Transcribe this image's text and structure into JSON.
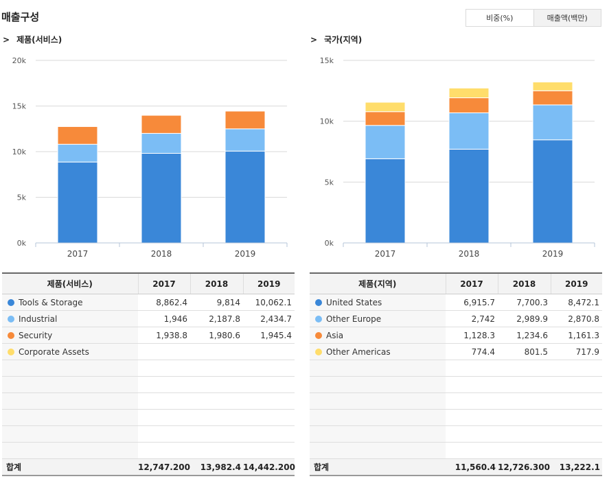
{
  "page_title": "매출구성",
  "toggle": {
    "ratio_label": "비중(%)",
    "amount_label": "매출액(백만)"
  },
  "colors": {
    "series1": "#3A87D8",
    "series2": "#7BBDF5",
    "series3": "#F78A3A",
    "series4": "#FFDD6B"
  },
  "left": {
    "section_title": "제품(서비스)",
    "arrow": ">",
    "table": {
      "header_label": "제품(서비스)",
      "years": [
        "2017",
        "2018",
        "2019"
      ],
      "rows": [
        {
          "label": "Tools & Storage",
          "values": [
            "8,862.4",
            "9,814",
            "10,062.1"
          ]
        },
        {
          "label": "Industrial",
          "values": [
            "1,946",
            "2,187.8",
            "2,434.7"
          ]
        },
        {
          "label": "Security",
          "values": [
            "1,938.8",
            "1,980.6",
            "1,945.4"
          ]
        },
        {
          "label": "Corporate Assets",
          "values": [
            "",
            "",
            ""
          ]
        }
      ],
      "total_label": "합계",
      "totals": [
        "12,747.200",
        "13,982.4",
        "14,442.200"
      ]
    }
  },
  "right": {
    "section_title": "국가(지역)",
    "arrow": ">",
    "table": {
      "header_label": "제품(지역)",
      "years": [
        "2017",
        "2018",
        "2019"
      ],
      "rows": [
        {
          "label": "United States",
          "values": [
            "6,915.7",
            "7,700.3",
            "8,472.1"
          ]
        },
        {
          "label": "Other Europe",
          "values": [
            "2,742",
            "2,989.9",
            "2,870.8"
          ]
        },
        {
          "label": "Asia",
          "values": [
            "1,128.3",
            "1,234.6",
            "1,161.3"
          ]
        },
        {
          "label": "Other Americas",
          "values": [
            "774.4",
            "801.5",
            "717.9"
          ]
        }
      ],
      "total_label": "합계",
      "totals": [
        "11,560.4",
        "12,726.300",
        "13,222.1"
      ]
    }
  },
  "chart_data": [
    {
      "type": "bar",
      "stacked": true,
      "categories": [
        "2017",
        "2018",
        "2019"
      ],
      "ylim": [
        0,
        20000
      ],
      "yticks": [
        0,
        5000,
        10000,
        15000,
        20000
      ],
      "ytick_labels": [
        "0k",
        "5k",
        "10k",
        "15k",
        "20k"
      ],
      "grid": true,
      "series": [
        {
          "name": "Tools & Storage",
          "color": "#3A87D8",
          "values": [
            8862.4,
            9814,
            10062.1
          ]
        },
        {
          "name": "Industrial",
          "color": "#7BBDF5",
          "values": [
            1946,
            2187.8,
            2434.7
          ]
        },
        {
          "name": "Security",
          "color": "#F78A3A",
          "values": [
            1938.8,
            1980.6,
            1945.4
          ]
        },
        {
          "name": "Corporate Assets",
          "color": "#FFDD6B",
          "values": [
            0,
            0,
            0
          ]
        }
      ]
    },
    {
      "type": "bar",
      "stacked": true,
      "categories": [
        "2017",
        "2018",
        "2019"
      ],
      "ylim": [
        0,
        15000
      ],
      "yticks": [
        0,
        5000,
        10000,
        15000
      ],
      "ytick_labels": [
        "0k",
        "5k",
        "10k",
        "15k"
      ],
      "grid": true,
      "series": [
        {
          "name": "United States",
          "color": "#3A87D8",
          "values": [
            6915.7,
            7700.3,
            8472.1
          ]
        },
        {
          "name": "Other Europe",
          "color": "#7BBDF5",
          "values": [
            2742,
            2989.9,
            2870.8
          ]
        },
        {
          "name": "Asia",
          "color": "#F78A3A",
          "values": [
            1128.3,
            1234.6,
            1161.3
          ]
        },
        {
          "name": "Other Americas",
          "color": "#FFDD6B",
          "values": [
            774.4,
            801.5,
            717.9
          ]
        }
      ]
    }
  ]
}
